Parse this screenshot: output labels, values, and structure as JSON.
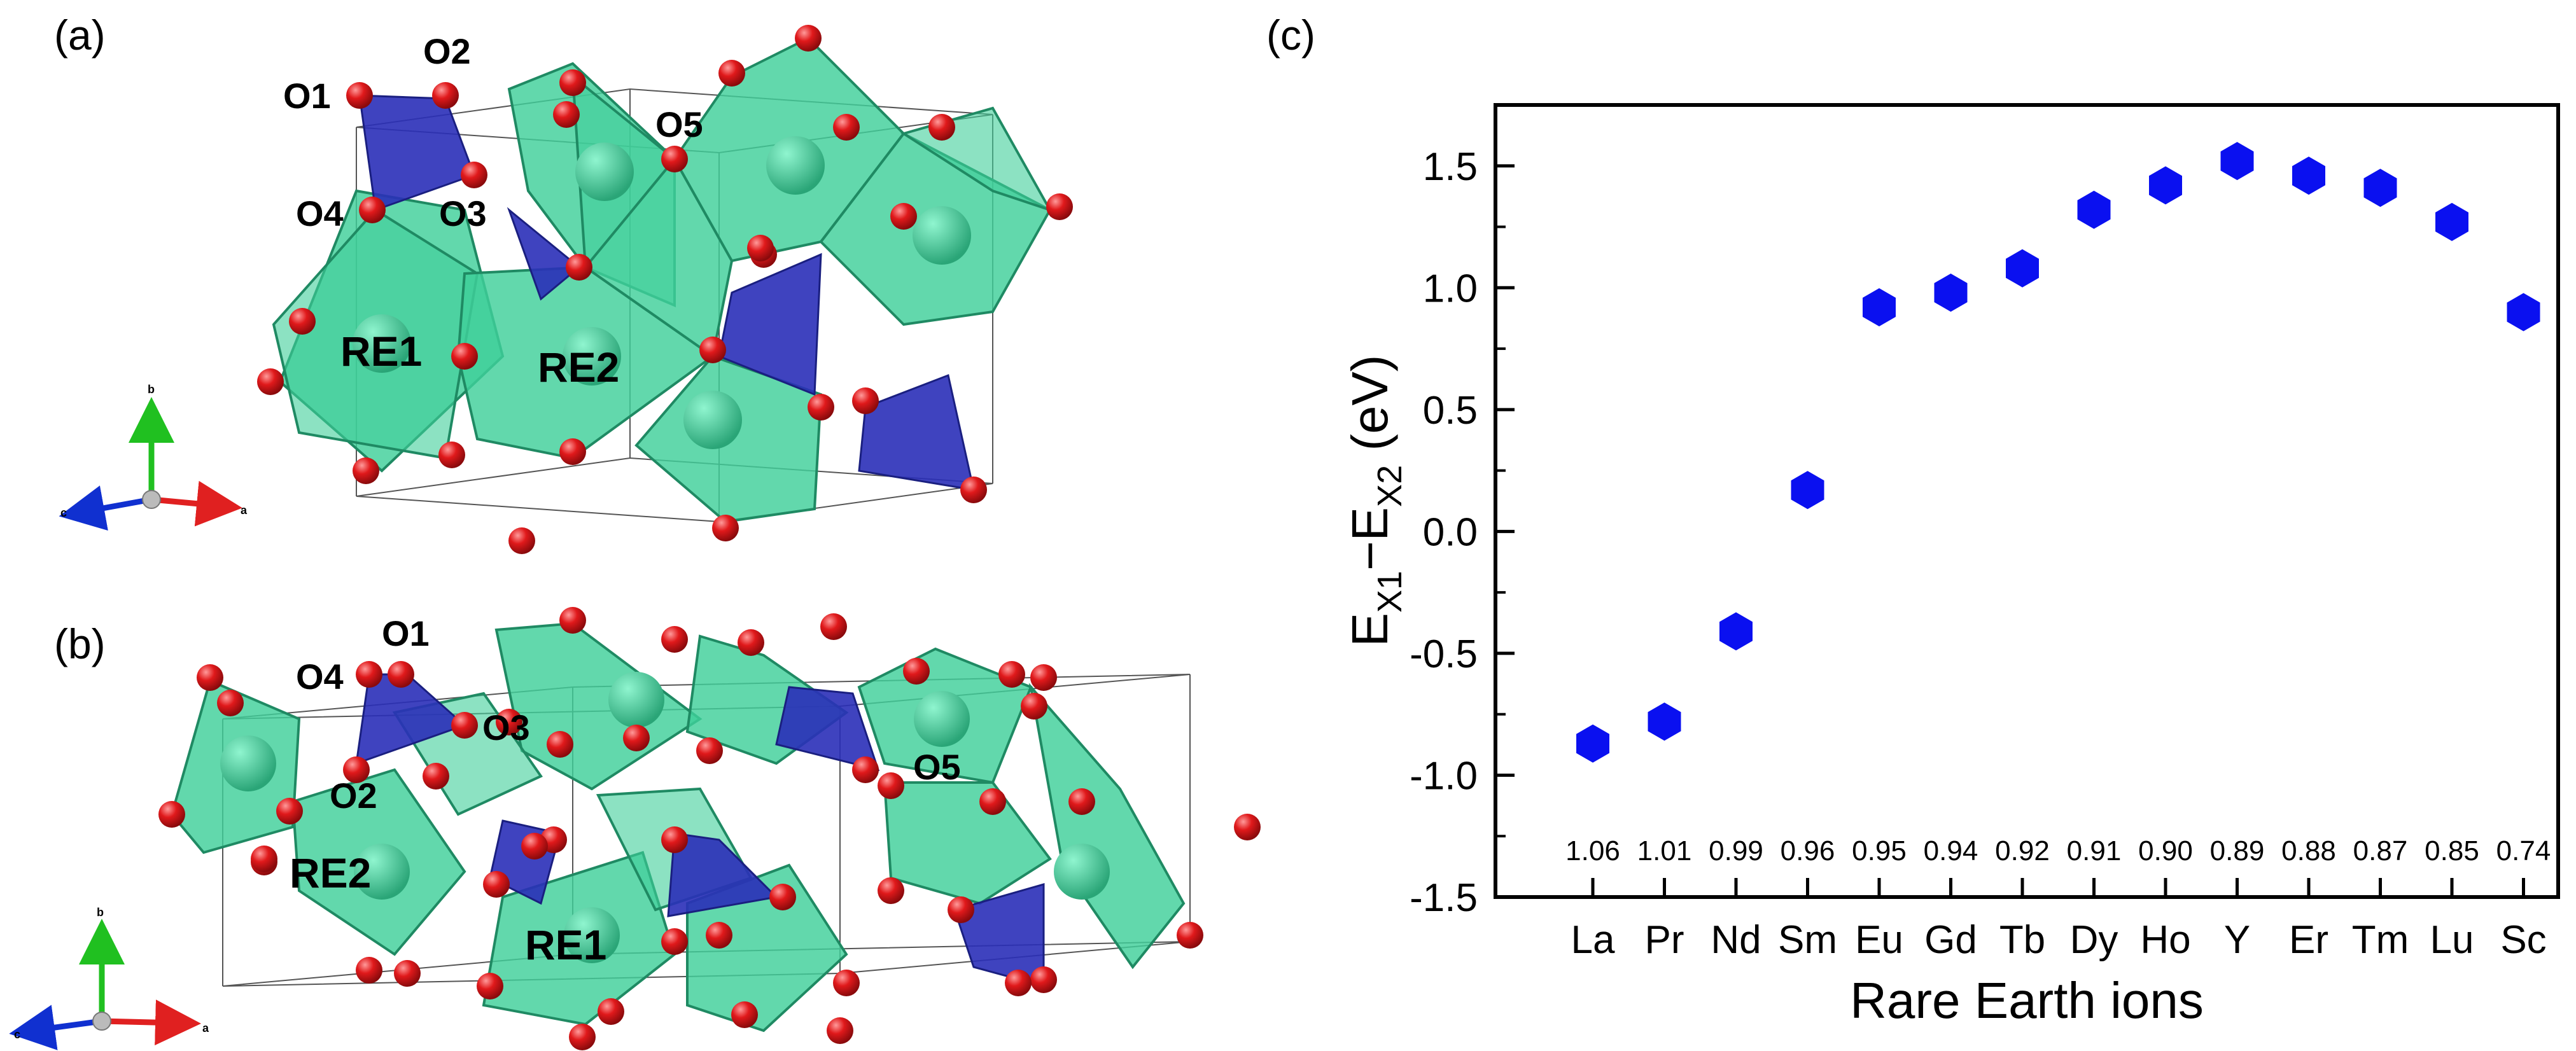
{
  "panels": {
    "a": {
      "label": "(a)",
      "atoms": [
        "O1",
        "O2",
        "O5",
        "O4",
        "O3"
      ],
      "sites": [
        "RE1",
        "RE2"
      ],
      "axes": {
        "a": "a",
        "b": "b",
        "c": "c"
      }
    },
    "b": {
      "label": "(b)",
      "atoms": [
        "O1",
        "O4",
        "O3",
        "O2",
        "O5"
      ],
      "sites": [
        "RE2",
        "RE1"
      ],
      "axes": {
        "a": "a",
        "b": "b",
        "c": "c"
      }
    },
    "c": {
      "label": "(c)"
    }
  },
  "colors": {
    "polyhedron_re": "#3fcf9a",
    "polyhedron_si": "#2a2fb8",
    "oxygen": "#e0191b",
    "marker": "#0a10f0"
  },
  "chart_data": {
    "type": "scatter",
    "marker": "hexagon",
    "categories": [
      "La",
      "Pr",
      "Nd",
      "Sm",
      "Eu",
      "Gd",
      "Tb",
      "Dy",
      "Ho",
      "Y",
      "Er",
      "Tm",
      "Lu",
      "Sc"
    ],
    "values": [
      -0.87,
      -0.78,
      -0.41,
      0.17,
      0.92,
      0.98,
      1.08,
      1.32,
      1.42,
      1.52,
      1.46,
      1.41,
      1.27,
      0.9
    ],
    "annotations": [
      "1.06",
      "1.01",
      "0.99",
      "0.96",
      "0.95",
      "0.94",
      "0.92",
      "0.91",
      "0.90",
      "0.89",
      "0.88",
      "0.87",
      "0.85",
      "0.74"
    ],
    "xlabel": "Rare Earth ions",
    "ylabel": {
      "main": "E",
      "sub1": "X1",
      "dash": "−",
      "sub2": "X2",
      "unit": " (eV)"
    },
    "ylim": [
      -1.5,
      1.75
    ],
    "yticks": [
      -1.5,
      -1.0,
      -0.5,
      0.0,
      0.5,
      1.0,
      1.5
    ],
    "ytick_labels": [
      "-1.5",
      "-1.0",
      "-0.5",
      "0.0",
      "0.5",
      "1.0",
      "1.5"
    ],
    "grid": false,
    "legend": "none"
  }
}
